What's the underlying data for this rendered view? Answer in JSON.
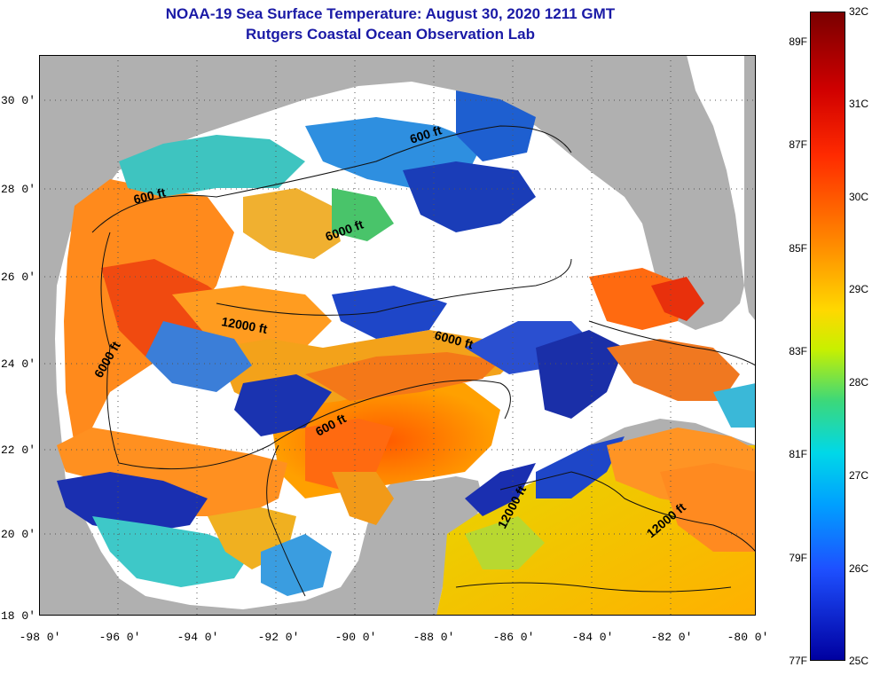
{
  "title": "NOAA-19 Sea Surface Temperature:  August 30, 2020 1211 GMT",
  "subtitle": "Rutgers Coastal Ocean Observation Lab",
  "lat_labels": [
    "30 0'",
    "28 0'",
    "26 0'",
    "24 0'",
    "22 0'",
    "20 0'",
    "18 0'"
  ],
  "lon_labels": [
    "-98 0'",
    "-96 0'",
    "-94 0'",
    "-92 0'",
    "-90 0'",
    "-88 0'",
    "-86 0'",
    "-84 0'",
    "-82 0'",
    "-80 0'"
  ],
  "colorbar": {
    "fahrenheit": [
      "89F",
      "87F",
      "85F",
      "83F",
      "81F",
      "79F",
      "77F"
    ],
    "celsius": [
      "32C",
      "31C",
      "30C",
      "29C",
      "28C",
      "27C",
      "26C",
      "25C"
    ]
  },
  "contours": {
    "c600_north": "600 ft",
    "c600_ne": "600 ft",
    "c600_central": "600 ft",
    "c6000_north": "6000 ft",
    "c6000_west": "6000 ft",
    "c6000_central": "6000 ft",
    "c12000_west": "12000 ft",
    "c12000_yucatan": "12000 ft",
    "c12000_cayman": "12000 ft"
  },
  "colors": {
    "land": "#b0b0b0",
    "cloud": "#ffffff",
    "title": "#1a1aa6"
  }
}
